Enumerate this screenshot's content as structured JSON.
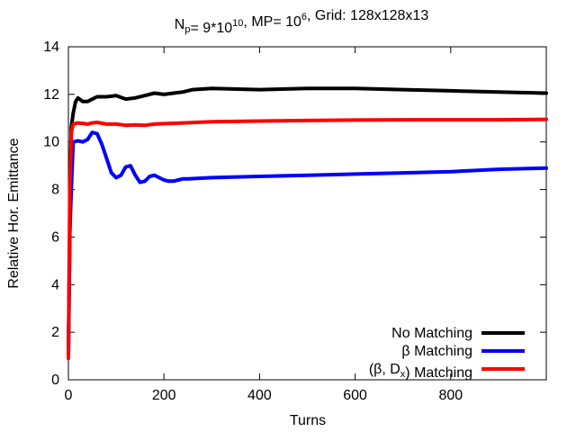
{
  "chart_data": {
    "type": "line",
    "title": {
      "parts": [
        {
          "text": "N",
          "sub": "p",
          "sup": ""
        },
        {
          "text": "= 9*10",
          "sub": "",
          "sup": "10"
        },
        {
          "text": ", MP= 10",
          "sub": "",
          "sup": "6"
        },
        {
          "text": ", Grid: 128x128x13",
          "sub": "",
          "sup": ""
        }
      ]
    },
    "xlabel": "Turns",
    "ylabel": "Relative Hor. Emittance",
    "xlim": [
      0,
      1000
    ],
    "ylim": [
      0,
      14
    ],
    "xticks": [
      0,
      200,
      400,
      600,
      800
    ],
    "yticks": [
      0,
      2,
      4,
      6,
      8,
      10,
      12,
      14
    ],
    "legend_position": "bottom-right",
    "series": [
      {
        "name": "No Matching",
        "label_parts": [
          {
            "text": "No Matching",
            "sub": ""
          }
        ],
        "color": "#000000",
        "x": [
          0,
          3,
          6,
          10,
          15,
          20,
          30,
          40,
          60,
          80,
          100,
          120,
          140,
          160,
          180,
          200,
          220,
          240,
          260,
          300,
          400,
          500,
          600,
          700,
          800,
          900,
          1000
        ],
        "y": [
          1.0,
          6.5,
          10.6,
          11.2,
          11.7,
          11.85,
          11.7,
          11.7,
          11.9,
          11.9,
          11.95,
          11.8,
          11.85,
          11.95,
          12.05,
          12.0,
          12.05,
          12.1,
          12.2,
          12.25,
          12.2,
          12.25,
          12.25,
          12.2,
          12.15,
          12.1,
          12.05
        ]
      },
      {
        "name": "β Matching",
        "label_parts": [
          {
            "text": "β Matching",
            "sub": ""
          }
        ],
        "color": "#0000ff",
        "x": [
          0,
          3,
          6,
          10,
          20,
          30,
          40,
          50,
          60,
          70,
          80,
          90,
          100,
          110,
          120,
          130,
          140,
          150,
          160,
          170,
          180,
          190,
          200,
          210,
          220,
          230,
          240,
          250,
          300,
          400,
          500,
          600,
          700,
          800,
          900,
          1000
        ],
        "y": [
          1.0,
          6.2,
          8.0,
          10.0,
          10.05,
          10.0,
          10.1,
          10.4,
          10.35,
          9.9,
          9.3,
          8.7,
          8.5,
          8.6,
          8.95,
          9.0,
          8.6,
          8.3,
          8.35,
          8.55,
          8.6,
          8.5,
          8.4,
          8.35,
          8.35,
          8.4,
          8.45,
          8.45,
          8.5,
          8.55,
          8.6,
          8.65,
          8.7,
          8.75,
          8.85,
          8.9
        ]
      },
      {
        "name": "(β, Dx) Matching",
        "label_parts": [
          {
            "text": "(β, D",
            "sub": ""
          },
          {
            "text": "",
            "sub": "x"
          },
          {
            "text": ") Matching",
            "sub": ""
          }
        ],
        "color": "#ff0000",
        "x": [
          0,
          3,
          6,
          10,
          20,
          30,
          40,
          50,
          60,
          80,
          100,
          120,
          140,
          160,
          180,
          200,
          240,
          300,
          400,
          500,
          600,
          700,
          800,
          900,
          1000
        ],
        "y": [
          0.9,
          8.0,
          10.4,
          10.75,
          10.8,
          10.78,
          10.75,
          10.8,
          10.82,
          10.75,
          10.75,
          10.7,
          10.72,
          10.7,
          10.75,
          10.77,
          10.8,
          10.85,
          10.88,
          10.9,
          10.92,
          10.93,
          10.93,
          10.93,
          10.95
        ]
      }
    ]
  }
}
